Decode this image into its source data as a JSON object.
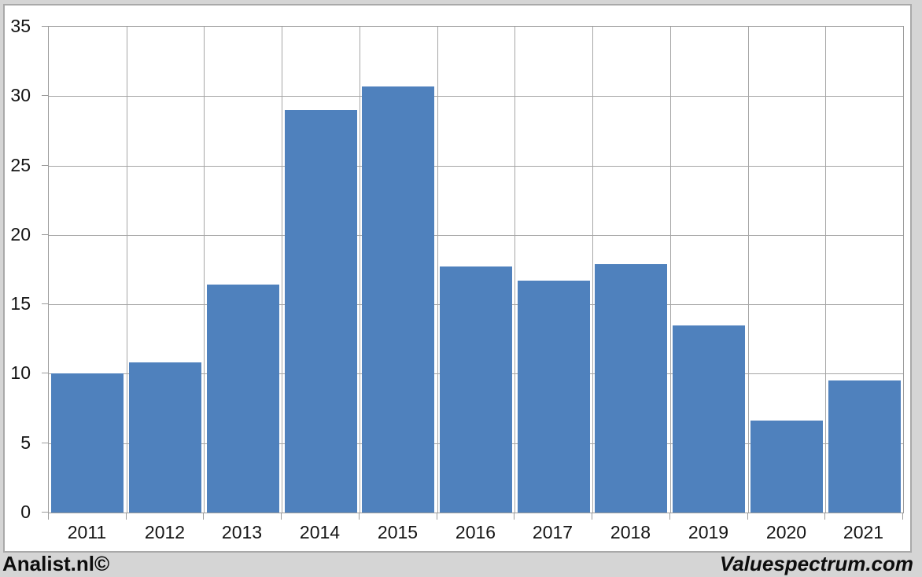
{
  "chart_data": {
    "type": "bar",
    "title": "",
    "categories": [
      "2011",
      "2012",
      "2013",
      "2014",
      "2015",
      "2016",
      "2017",
      "2018",
      "2019",
      "2020",
      "2021"
    ],
    "values": [
      10.0,
      10.8,
      16.4,
      29.0,
      30.7,
      17.7,
      16.7,
      17.9,
      13.5,
      6.6,
      9.5
    ],
    "xlabel": "",
    "ylabel": "",
    "ylim": [
      0,
      35
    ],
    "ytick_step": 5,
    "ytick_labels": [
      "0",
      "5",
      "10",
      "15",
      "20",
      "25",
      "30",
      "35"
    ],
    "grid": "horizontal-and-vertical-category-boundaries",
    "legend": "none",
    "bar_color": "#4f81bd",
    "gridline_color": "#a6a6a6"
  },
  "footer": {
    "left_brand": "Analist.nl©",
    "right_brand": "Valuespectrum.com"
  },
  "colors": {
    "panel_background": "#ffffff",
    "outer_background": "#d5d5d5",
    "frame_border": "#a9a9a9",
    "axis_border": "#9b9b9b",
    "text": "#141414"
  }
}
